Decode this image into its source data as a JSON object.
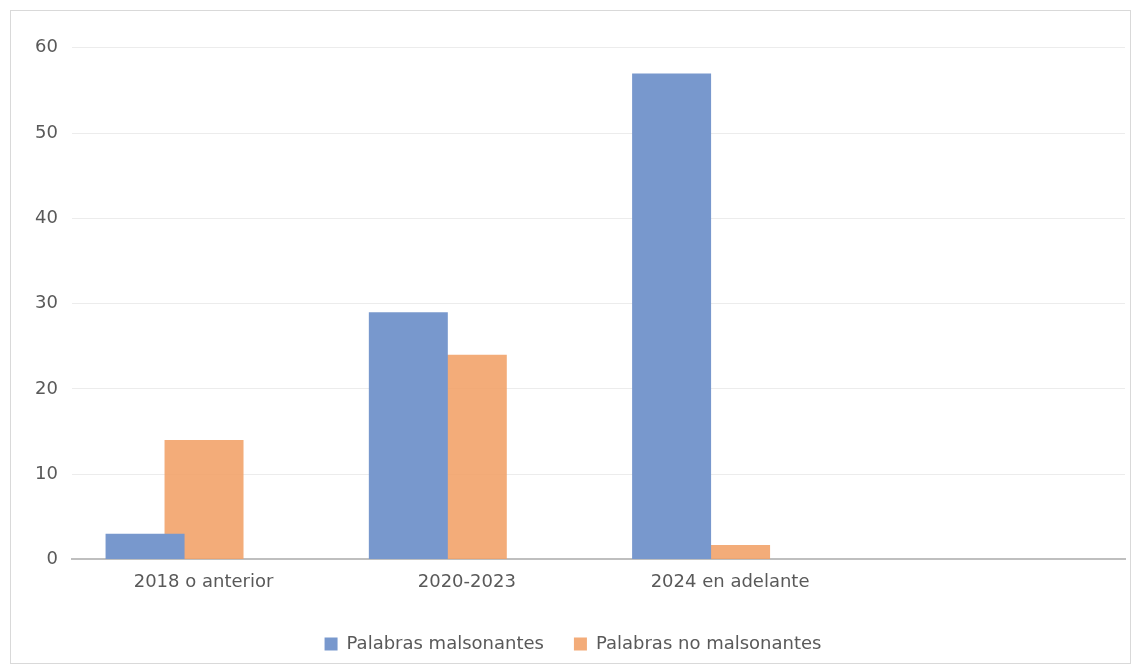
{
  "chart_data": {
    "type": "bar",
    "categories": [
      "2018 o anterior",
      "2020-2023",
      "2024 en adelante",
      null
    ],
    "series": [
      {
        "name": "Palabras malsonantes",
        "color": "#7898cd",
        "values": [
          3,
          29,
          57,
          null
        ]
      },
      {
        "name": "Palabras no malsonantes",
        "color": "#f1a067",
        "values": [
          14,
          24,
          1.7,
          null
        ]
      }
    ],
    "ylim": [
      0,
      60
    ],
    "yticks": [
      0,
      10,
      20,
      30,
      40,
      50,
      60
    ],
    "grid": "y",
    "legend": "bottom"
  }
}
